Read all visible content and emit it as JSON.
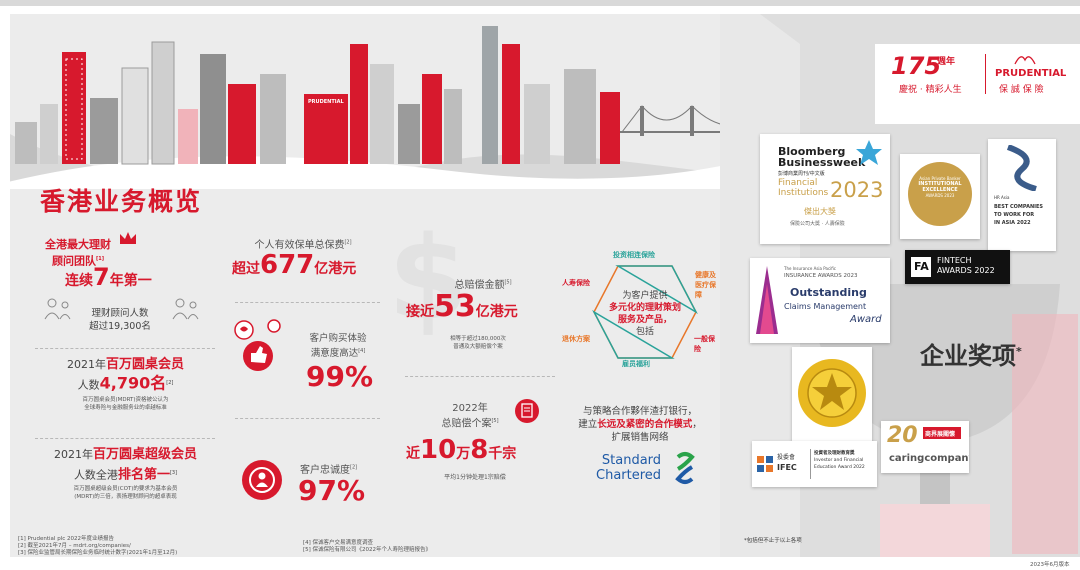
{
  "title": "香港业务概览",
  "stats": {
    "team": {
      "line1": "全港最大理财",
      "line2": "顾问团队",
      "sup": "[1]",
      "line3a": "连续",
      "line3b": "7",
      "line3c": "年第一",
      "sub1": "理财顾问人数",
      "sub2": "超过19,300名"
    },
    "mdrt": {
      "line1a": "2021年",
      "line1b": "百万圆桌会员",
      "line2a": "人数",
      "line2b": "4,790名",
      "sup": "[2]",
      "note1": "百万圆桌会员(MDRT)资格被公认为",
      "note2": "全球寿险与金融服务业的卓越标准"
    },
    "cot": {
      "line1a": "2021年",
      "line1b": "百万圆桌超级会员",
      "line2a": "人数全港",
      "line2b": "排名第一",
      "sup": "[3]",
      "note1": "百万圆桌超级会员(COT)的要求为基本会员",
      "note2": "(MDRT)的三倍，表扬理财顾问的超卓表现"
    },
    "premium": {
      "label": "个人有效保单总保费",
      "sup": "[2]",
      "pre": "超过",
      "num": "677",
      "unit": "亿港元"
    },
    "satisfaction": {
      "line1": "客户购买体验",
      "line2": "满意度高达",
      "sup": "[4]",
      "value": "99%"
    },
    "loyalty": {
      "label": "客户忠诚度",
      "sup": "[2]",
      "value": "97%"
    },
    "claims_amount": {
      "label": "总赔偿金额",
      "sup": "[5]",
      "pre": "接近",
      "num": "53",
      "unit": "亿港元",
      "note1": "相等于超过180,000次",
      "note2": "普通及大额赔偿个案"
    },
    "claims_cases": {
      "line1": "2022年",
      "line2": "总赔偿个案",
      "sup": "[5]",
      "pre": "近",
      "num1": "10",
      "mid": "万",
      "num2": "8",
      "post": "千宗",
      "note": "平均1分钟处理1宗赔偿"
    }
  },
  "services": {
    "center1": "为客户提供",
    "center2": "多元化的理财策划",
    "center3": "服务及产品，",
    "center4": "包括",
    "items": [
      "投资相连保险",
      "健康及",
      "医疗保障",
      "一般保险",
      "雇员福利",
      "退休方案",
      "人寿保险"
    ]
  },
  "bank": {
    "line1": "与策略合作夥伴渣打银行，",
    "line2a": "建立",
    "line2b": "长远及紧密的合作模式",
    "line2c": "，",
    "line3": "扩展销售网络",
    "logo1": "Standard",
    "logo2": "Chartered"
  },
  "footnotes_left": [
    "[1] Prudential plc 2022年度业绩报告",
    "[2] 截至2021年7月 – mdrt.org/companies/",
    "[3] 保险业监管局长期保险业务临时统计数字(2021年1月至12月)"
  ],
  "footnotes_mid": [
    "[4] 保诚客户交易满意度调查",
    "[5] 保诚保险有限公司《2022年个人寿险理赔报告》"
  ],
  "brand": {
    "anniv_num": "175",
    "anniv_word": "週年",
    "anniv_slogan": "慶祝 · 精彩人生",
    "name": "PRUDENTIAL",
    "name_cn": "保 誠 保 險"
  },
  "awards": {
    "bloomberg": {
      "l1": "Bloomberg",
      "l2": "Businessweek",
      "l3": "彭博商業周刊/中文版",
      "l4": "Financial",
      "l5": "Institutions",
      "year": "2023",
      "l6": "傑出大獎",
      "l7": "保險公司大獎 · 人壽保險"
    },
    "asian": {
      "l1": "Asian Private Banker",
      "l2": "INSTITUTIONAL",
      "l3": "EXCELLENCE",
      "l4": "AWARDS 2023"
    },
    "hr": {
      "l1": "HR Asia",
      "l2": "BEST COMPANIES",
      "l3": "TO WORK FOR",
      "l4": "IN ASIA 2022"
    },
    "fintech": {
      "l1": "FINTECH",
      "l2": "AWARDS 2022"
    },
    "insurance": {
      "l1": "The Insurance Asia Pacific",
      "l2": "INSURANCE AWARDS 2023",
      "l3": "Outstanding",
      "l4": "Claims Management",
      "l5": "Award"
    },
    "ifec": {
      "l1": "投委會",
      "l2": "IFEC",
      "l3": "投資者及理財教育獎",
      "l4": "Investor and Financial",
      "l5": "Education Award 2022"
    },
    "caring": {
      "num": "20",
      "l1": "caringcompany",
      "l2": "商界展關懷"
    }
  },
  "corp_award": "企业奖项",
  "corp_award_mark": "*",
  "award_note": "*包括但不止于以上各项",
  "date_note": "2023年6月版本",
  "colors": {
    "red": "#d7192d",
    "grey": "#ececec",
    "orange": "#e8772a",
    "teal": "#2aa39a"
  }
}
